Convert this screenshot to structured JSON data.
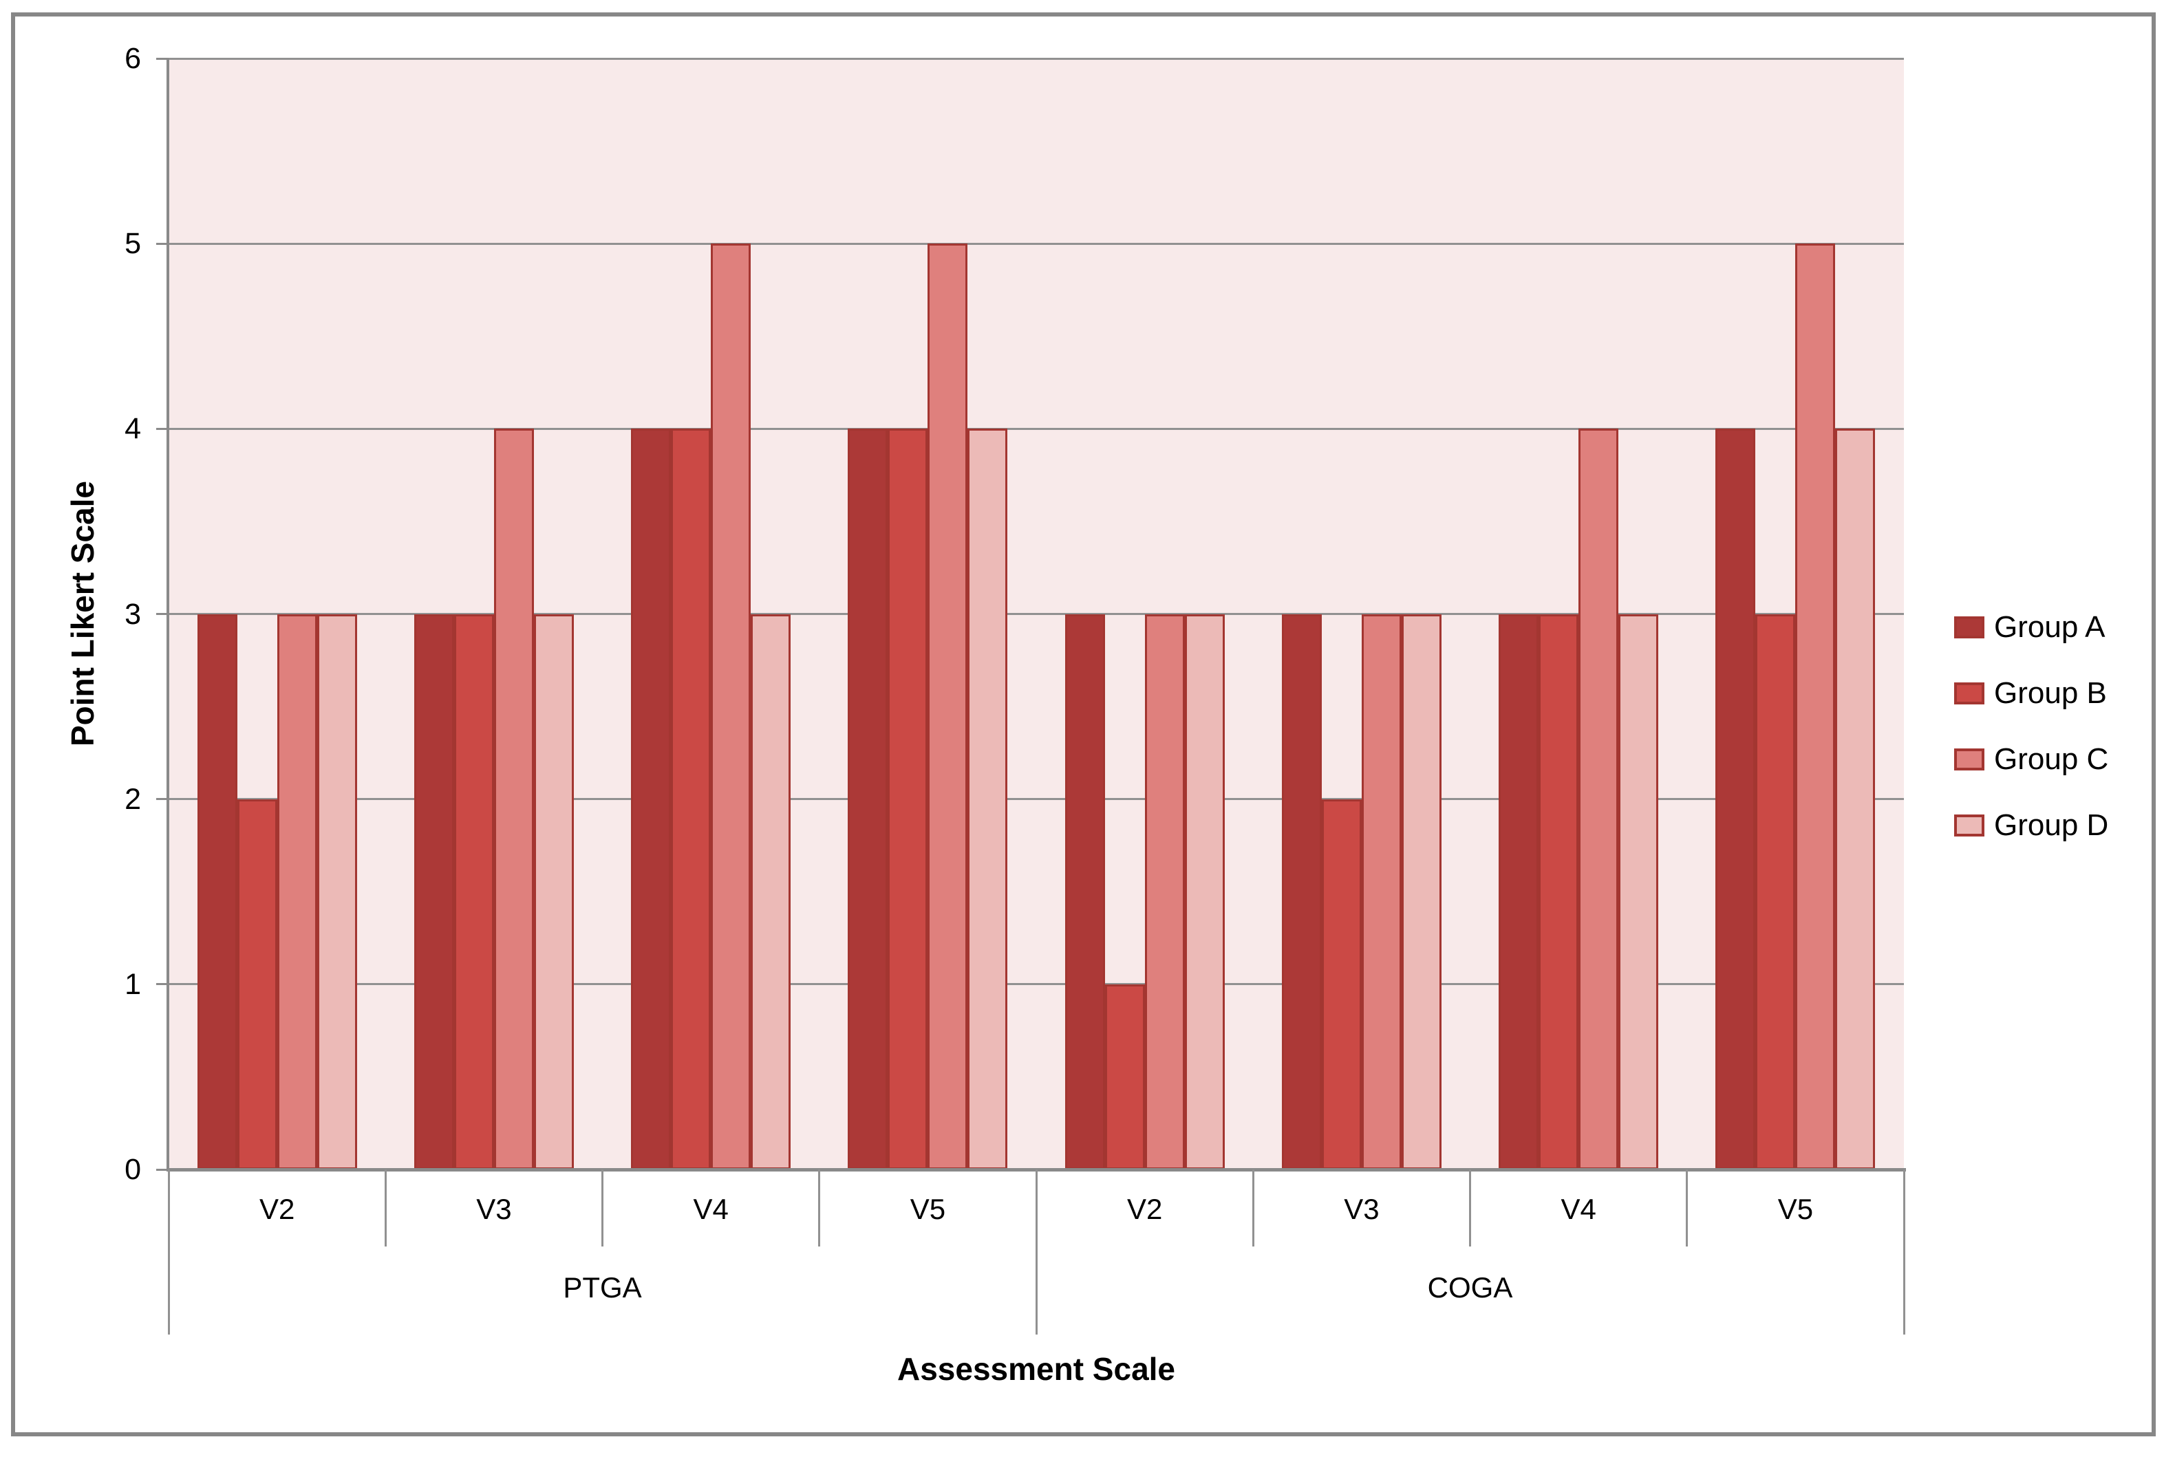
{
  "chart_data": {
    "type": "bar",
    "title": "",
    "xlabel": "Assessment Scale",
    "ylabel": "Point Likert Scale",
    "ylim": [
      0,
      6
    ],
    "yticks": [
      0,
      1,
      2,
      3,
      4,
      5,
      6
    ],
    "grid": true,
    "legend_position": "right",
    "groups": [
      {
        "label": "PTGA",
        "categories": [
          "V2",
          "V3",
          "V4",
          "V5"
        ]
      },
      {
        "label": "COGA",
        "categories": [
          "V2",
          "V3",
          "V4",
          "V5"
        ]
      }
    ],
    "series": [
      {
        "name": "Group A",
        "color": "#AC3937",
        "values": [
          3,
          3,
          4,
          4,
          3,
          3,
          3,
          4
        ]
      },
      {
        "name": "Group B",
        "color": "#CB4945",
        "values": [
          2,
          3,
          4,
          4,
          1,
          2,
          3,
          3
        ]
      },
      {
        "name": "Group C",
        "color": "#DF807D",
        "values": [
          3,
          4,
          5,
          5,
          3,
          3,
          4,
          5
        ]
      },
      {
        "name": "Group D",
        "color": "#ECBAB7",
        "values": [
          3,
          3,
          3,
          4,
          3,
          3,
          3,
          4
        ]
      }
    ],
    "colors": {
      "bar_border": "#A33631",
      "plot_bg": "#F8EAEA",
      "gridline": "#919191",
      "axis_line": "#8A8A8A",
      "frame_border": "#878787",
      "text": "#000000"
    }
  }
}
